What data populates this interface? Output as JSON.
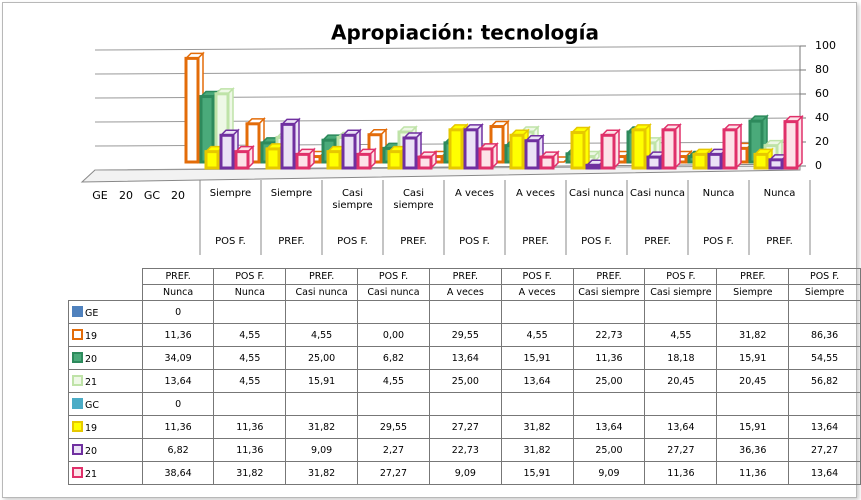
{
  "chart_data": {
    "type": "bar",
    "title": "Apropiación: tecnología",
    "ylim": [
      0,
      100
    ],
    "yticks": [
      0,
      20,
      40,
      60,
      80,
      100
    ],
    "grid": true,
    "x_labels_extra": [
      "GE",
      "20",
      "GC",
      "20"
    ],
    "category_groups": [
      "PREF.",
      "POS F.",
      "PREF.",
      "POS F.",
      "PREF.",
      "POS F.",
      "PREF.",
      "POS F.",
      "PREF.",
      "POS F."
    ],
    "categories": [
      "Nunca",
      "Nunca",
      "Casi  nunca",
      "Casi  nunca",
      "A veces",
      "A veces",
      "Casi siempre",
      "Casi siempre",
      "Siempre",
      "Siempre"
    ],
    "groups": [
      {
        "name": "GE",
        "color": "#4f81bd",
        "value": 0,
        "series": [
          {
            "name": "19",
            "color": "#e36c09",
            "fill": "#ffffff",
            "values": [
              11.36,
              4.55,
              4.55,
              0.0,
              29.55,
              4.55,
              22.73,
              4.55,
              31.82,
              86.36
            ],
            "value_labels": [
              "11,36",
              "4,55",
              "4,55",
              "0,00",
              "29,55",
              "4,55",
              "22,73",
              "4,55",
              "31,82",
              "86,36"
            ]
          },
          {
            "name": "20",
            "color": "#2d8a5c",
            "fill": "#4aaa7a",
            "values": [
              34.09,
              4.55,
              25.0,
              6.82,
              13.64,
              15.91,
              11.36,
              18.18,
              15.91,
              54.55
            ],
            "value_labels": [
              "34,09",
              "4,55",
              "25,00",
              "6,82",
              "13,64",
              "15,91",
              "11,36",
              "18,18",
              "15,91",
              "54,55"
            ]
          },
          {
            "name": "21",
            "color": "#bfe3a8",
            "fill": "#eef8e6",
            "values": [
              13.64,
              4.55,
              15.91,
              4.55,
              25.0,
              13.64,
              25.0,
              20.45,
              20.45,
              56.82
            ],
            "value_labels": [
              "13,64",
              "4,55",
              "15,91",
              "4,55",
              "25,00",
              "13,64",
              "25,00",
              "20,45",
              "20,45",
              "56,82"
            ]
          }
        ]
      },
      {
        "name": "GC",
        "color": "#4bacc6",
        "value": 0,
        "series": [
          {
            "name": "19",
            "color": "#e6c800",
            "fill": "#ffff00",
            "values": [
              11.36,
              11.36,
              31.82,
              29.55,
              27.27,
              31.82,
              13.64,
              13.64,
              15.91,
              13.64
            ],
            "value_labels": [
              "11,36",
              "11,36",
              "31,82",
              "29,55",
              "27,27",
              "31,82",
              "13,64",
              "13,64",
              "15,91",
              "13,64"
            ]
          },
          {
            "name": "20",
            "color": "#7030a0",
            "fill": "#ebe2f6",
            "values": [
              6.82,
              11.36,
              9.09,
              2.27,
              22.73,
              31.82,
              25.0,
              27.27,
              36.36,
              27.27
            ],
            "value_labels": [
              "6,82",
              "11,36",
              "9,09",
              "2,27",
              "22,73",
              "31,82",
              "25,00",
              "27,27",
              "36,36",
              "27,27"
            ]
          },
          {
            "name": "21",
            "color": "#e0306a",
            "fill": "#fde2e8",
            "values": [
              38.64,
              31.82,
              31.82,
              27.27,
              9.09,
              15.91,
              9.09,
              11.36,
              11.36,
              13.64
            ],
            "value_labels": [
              "38,64",
              "31,82",
              "31,82",
              "27,27",
              "9,09",
              "15,91",
              "9,09",
              "11,36",
              "11,36",
              "13,64"
            ]
          }
        ]
      }
    ]
  }
}
